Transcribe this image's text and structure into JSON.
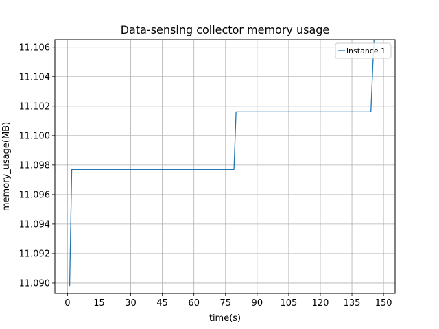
{
  "chart_data": {
    "type": "line",
    "title": "Data-sensing collector memory usage",
    "xlabel": "time(s)",
    "ylabel": "memory_usage(MB)",
    "xlim": [
      -6,
      155.5
    ],
    "ylim": [
      11.0893,
      11.1065
    ],
    "x_ticks": [
      0,
      15,
      30,
      45,
      60,
      75,
      90,
      105,
      120,
      135,
      150
    ],
    "x_tick_labels": [
      "0",
      "15",
      "30",
      "45",
      "60",
      "75",
      "90",
      "105",
      "120",
      "135",
      "150"
    ],
    "y_ticks": [
      11.09,
      11.092,
      11.094,
      11.096,
      11.098,
      11.1,
      11.102,
      11.104,
      11.106
    ],
    "y_tick_labels": [
      "11.090",
      "11.092",
      "11.094",
      "11.096",
      "11.098",
      "11.100",
      "11.102",
      "11.104",
      "11.106"
    ],
    "grid": true,
    "legend_position": "top-right",
    "series": [
      {
        "name": "instance 1",
        "color": "#1f77b4",
        "x": [
          1,
          2,
          79,
          80,
          144,
          145,
          145.5
        ],
        "y": [
          11.0898,
          11.0977,
          11.0977,
          11.1016,
          11.1016,
          11.105,
          11.1065
        ]
      }
    ]
  }
}
